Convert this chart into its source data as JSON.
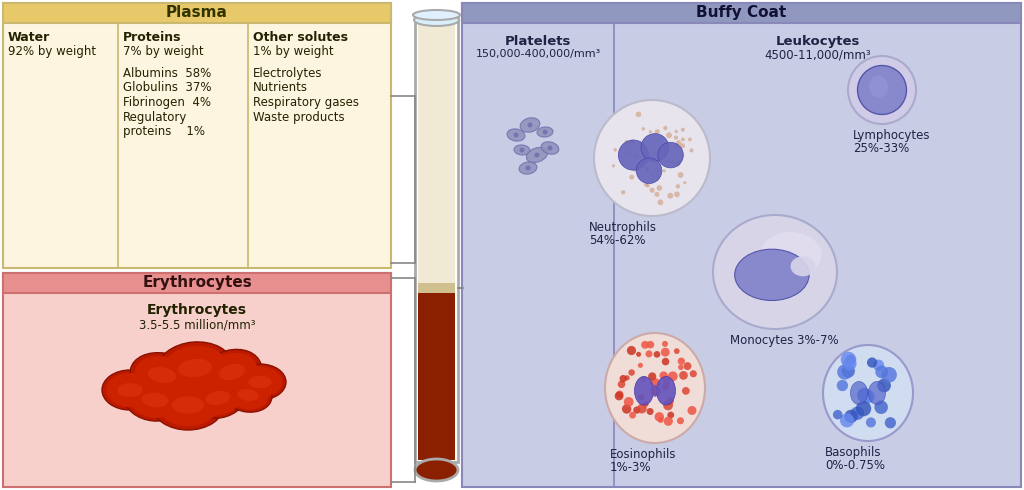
{
  "plasma_bg": "#fdf5e0",
  "plasma_header_bg": "#e8c96a",
  "plasma_header_text": "Plasma",
  "erythrocytes_bg": "#f7d0cc",
  "erythrocytes_header_bg": "#e89090",
  "erythrocytes_header_text": "Erythrocytes",
  "buffy_bg": "#c8cce5",
  "buffy_header_bg": "#9098c0",
  "buffy_header_text": "Buffy Coat",
  "water_label": "Water",
  "water_pct": "92% by weight",
  "proteins_label": "Proteins",
  "proteins_pct": "7% by weight",
  "proteins_line1": "Albumins  58%",
  "proteins_line2": "Globulins  37%",
  "proteins_line3": "Fibrinogen  4%",
  "proteins_line4": "Regulatory",
  "proteins_line5": "proteins    1%",
  "other_label": "Other solutes",
  "other_pct": "1% by weight",
  "other_line1": "Electrolytes",
  "other_line2": "Nutrients",
  "other_line3": "Respiratory gases",
  "other_line4": "Waste products",
  "erythrocytes_bold": "Erythrocytes",
  "erythrocytes_count": "3.5-5.5 million/mm³",
  "platelets_bold": "Platelets",
  "platelets_count": "150,000-400,000/mm³",
  "leukocytes_bold": "Leukocytes",
  "leukocytes_count": "4500-11,000/mm³",
  "neutrophils_line1": "Neutrophils",
  "neutrophils_line2": "54%-62%",
  "lymphocytes_line1": "Lymphocytes",
  "lymphocytes_line2": "25%-33%",
  "monocytes_text": "Monocytes 3%-7%",
  "eosinophils_line1": "Eosinophils",
  "eosinophils_line2": "1%-3%",
  "basophils_line1": "Basophils",
  "basophils_line2": "0%-0.75%",
  "bg_color": "#ffffff",
  "border_color_plasma": "#c8b870",
  "border_color_erythro": "#cc7070",
  "border_color_buffy": "#8888bb",
  "text_dark": "#222200",
  "text_blue": "#222244"
}
